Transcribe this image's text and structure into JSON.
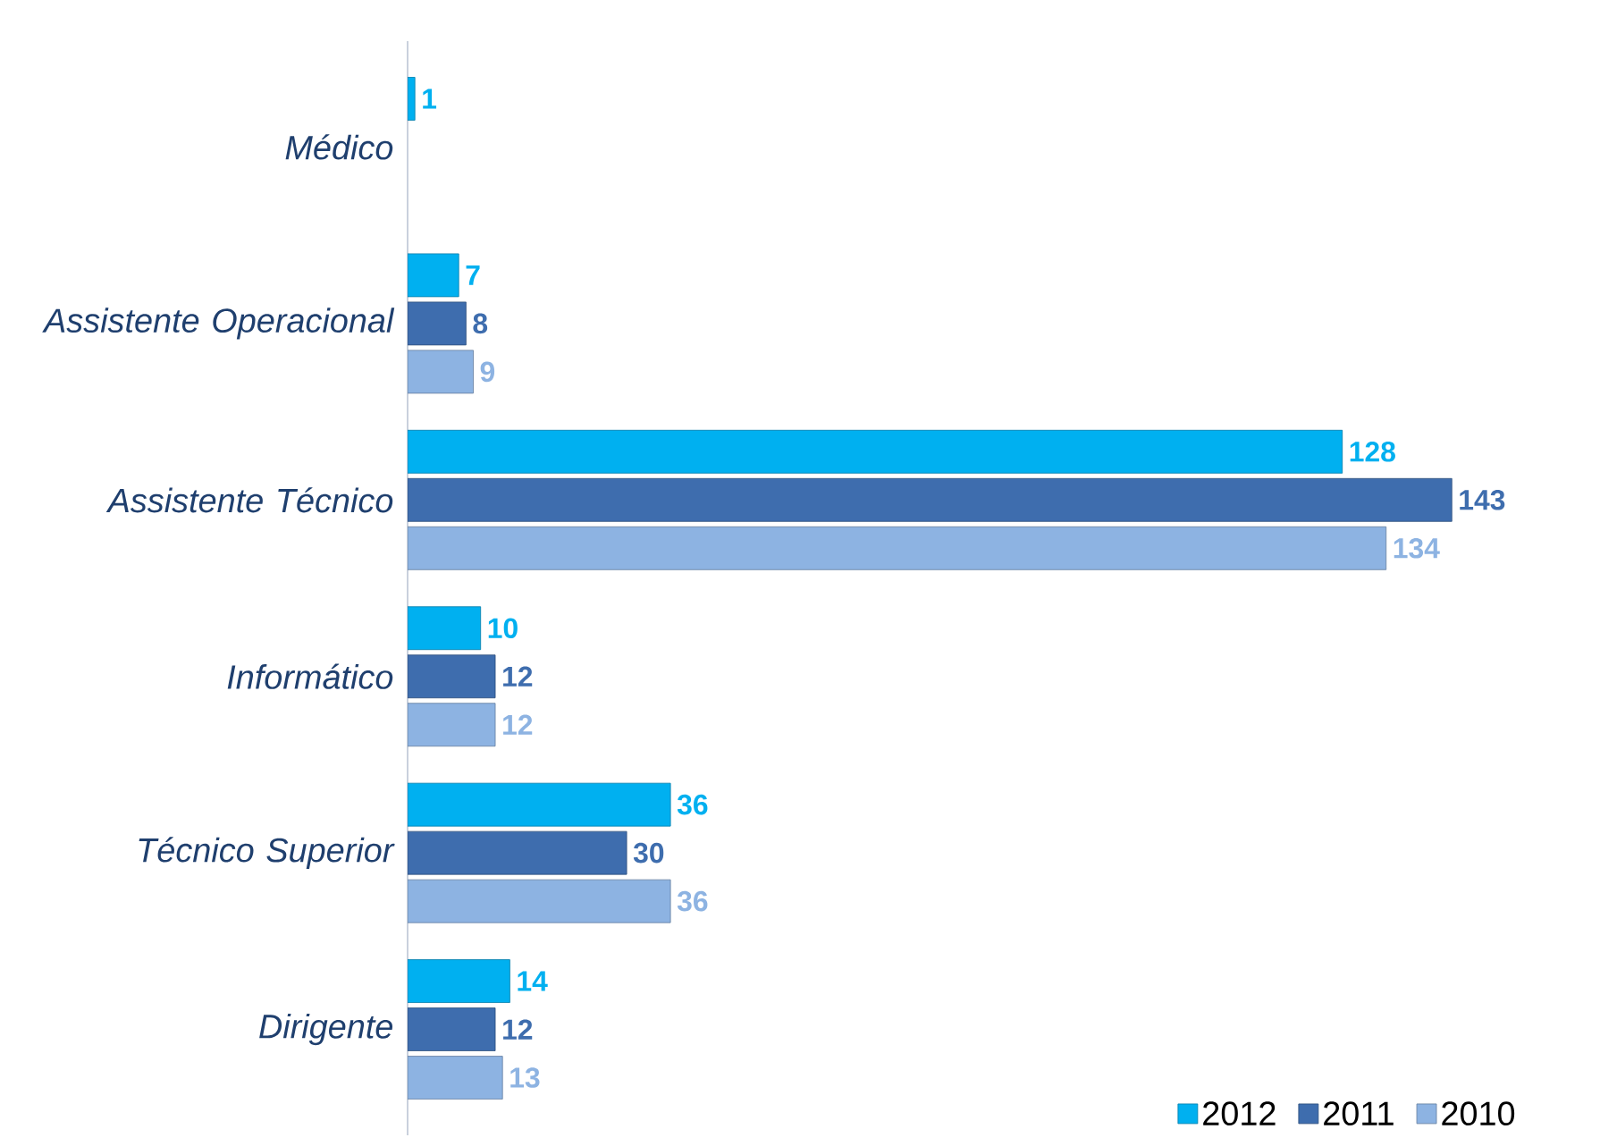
{
  "chart_data": {
    "type": "bar",
    "orientation": "horizontal",
    "categories": [
      "Médico",
      "Assistente Operacional",
      "Assistente Técnico",
      "Informático",
      "Técnico Superior",
      "Dirigente"
    ],
    "series": [
      {
        "name": "2012",
        "color": "#00b0f0",
        "values": [
          1,
          7,
          128,
          10,
          36,
          14
        ]
      },
      {
        "name": "2011",
        "color": "#3e6dae",
        "values": [
          null,
          8,
          143,
          12,
          30,
          12
        ]
      },
      {
        "name": "2010",
        "color": "#8db3e2",
        "values": [
          null,
          9,
          134,
          12,
          36,
          13
        ]
      }
    ],
    "data_labels": true,
    "legend": "bottom right",
    "tick_labels": "y"
  }
}
